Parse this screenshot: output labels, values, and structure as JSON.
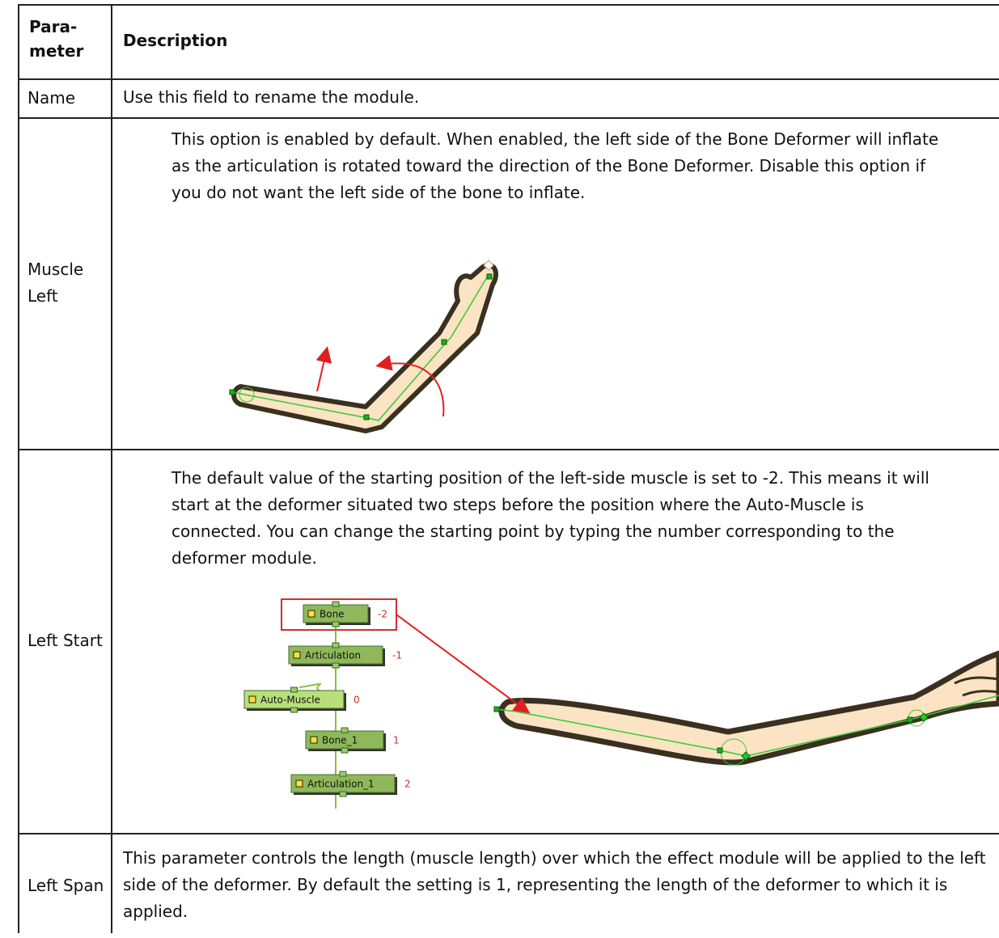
{
  "table": {
    "header": [
      [
        "Para-",
        "meter"
      ],
      "Description"
    ],
    "rows": [
      {
        "parameter": "Name",
        "description": "Use this field to rename the module."
      },
      {
        "parameter": "Muscle Left",
        "description": "This option is enabled by default. When enabled, the left side of the Bone Deformer will inflate as the articulation is rotated toward the direction of the Bone Deformer. Disable this option if you do not want the left side of the bone to inflate."
      },
      {
        "parameter": "Left Start",
        "description": "The default value of the starting position of the left-side muscle is set to -2. This means it will start at the deformer situated two steps before the position where the Auto-Muscle is connected. You can change the starting point by typing the number corresponding to the deformer module.",
        "nodes": [
          {
            "label": "Bone",
            "index": -2
          },
          {
            "label": "Articulation",
            "index": -1
          },
          {
            "label": "Auto-Muscle",
            "index": 0
          },
          {
            "label": "Bone_1",
            "index": 1
          },
          {
            "label": "Articulation_1",
            "index": 2
          }
        ]
      },
      {
        "parameter": "Left Span",
        "description": "This parameter controls the length (muscle length) over which the effect module will be applied to the left side of the deformer. By default the setting is 1, representing the length of the deformer to which it is applied."
      }
    ]
  }
}
